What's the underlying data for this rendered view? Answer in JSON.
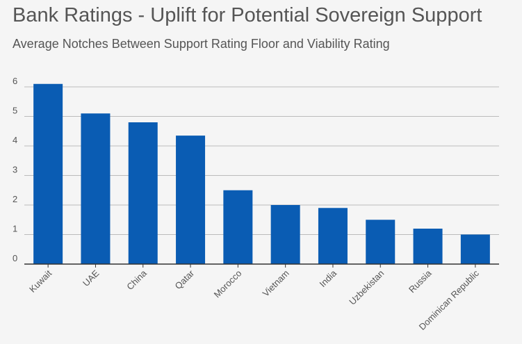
{
  "chart_data": {
    "type": "bar",
    "title": "Bank Ratings - Uplift for Potential Sovereign Support",
    "subtitle": "Average Notches Between Support Rating Floor and Viability Rating",
    "xlabel": "",
    "ylabel": "",
    "ylim": [
      0,
      6
    ],
    "yticks": [
      "0",
      "1",
      "2",
      "3",
      "4",
      "5",
      "6"
    ],
    "grid": true,
    "color": "#0a5cb3",
    "categories": [
      "Kuwait",
      "UAE",
      "China",
      "Qatar",
      "Morocco",
      "Vietnam",
      "India",
      "Uzbekistan",
      "Russia",
      "Dominican Republic"
    ],
    "values": [
      6.1,
      5.1,
      4.8,
      4.35,
      2.5,
      2.0,
      1.9,
      1.5,
      1.2,
      1.0
    ]
  }
}
